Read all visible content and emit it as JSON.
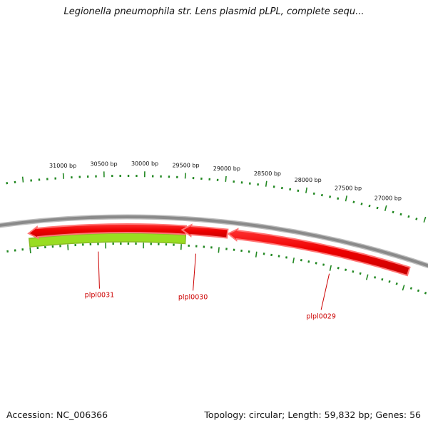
{
  "title": "Legionella pneumophila str. Lens plasmid pLPL, complete sequ...",
  "accession": "Accession: NC_006366",
  "summary": "Topology: circular; Length: 59,832 bp; Genes: 56",
  "map": {
    "start_bp": 31500,
    "end_bp": 26500,
    "scale_labels": [
      "31000 bp",
      "30500 bp",
      "30000 bp",
      "29500 bp",
      "29000 bp",
      "28500 bp",
      "28000 bp",
      "27500 bp",
      "27000 bp"
    ],
    "colors": {
      "backbone": "#8a8a8a",
      "reverse_gene": "#ee0000",
      "forward_gene": "#99dd22",
      "tick": "#228822",
      "gene_label": "#cc0000"
    },
    "genes": [
      {
        "name": "plpl0031",
        "start_bp": 29450,
        "end_bp": 31500,
        "strand": "forward",
        "color": "#99dd22"
      },
      {
        "name": "plpl0031",
        "start_bp": 29450,
        "end_bp": 31500,
        "strand": "reverse",
        "color": "#ee0000"
      },
      {
        "name": "plpl0030",
        "start_bp": 28910,
        "end_bp": 29500,
        "strand": "reverse",
        "color": "#ee0000"
      },
      {
        "name": "plpl0029",
        "start_bp": 26500,
        "end_bp": 28900,
        "strand": "reverse",
        "color": "#ee0000"
      }
    ],
    "gene_labels": [
      {
        "name": "plpl0031",
        "bp": 30600
      },
      {
        "name": "plpl0030",
        "bp": 29300
      },
      {
        "name": "plpl0029",
        "bp": 27500
      }
    ]
  }
}
